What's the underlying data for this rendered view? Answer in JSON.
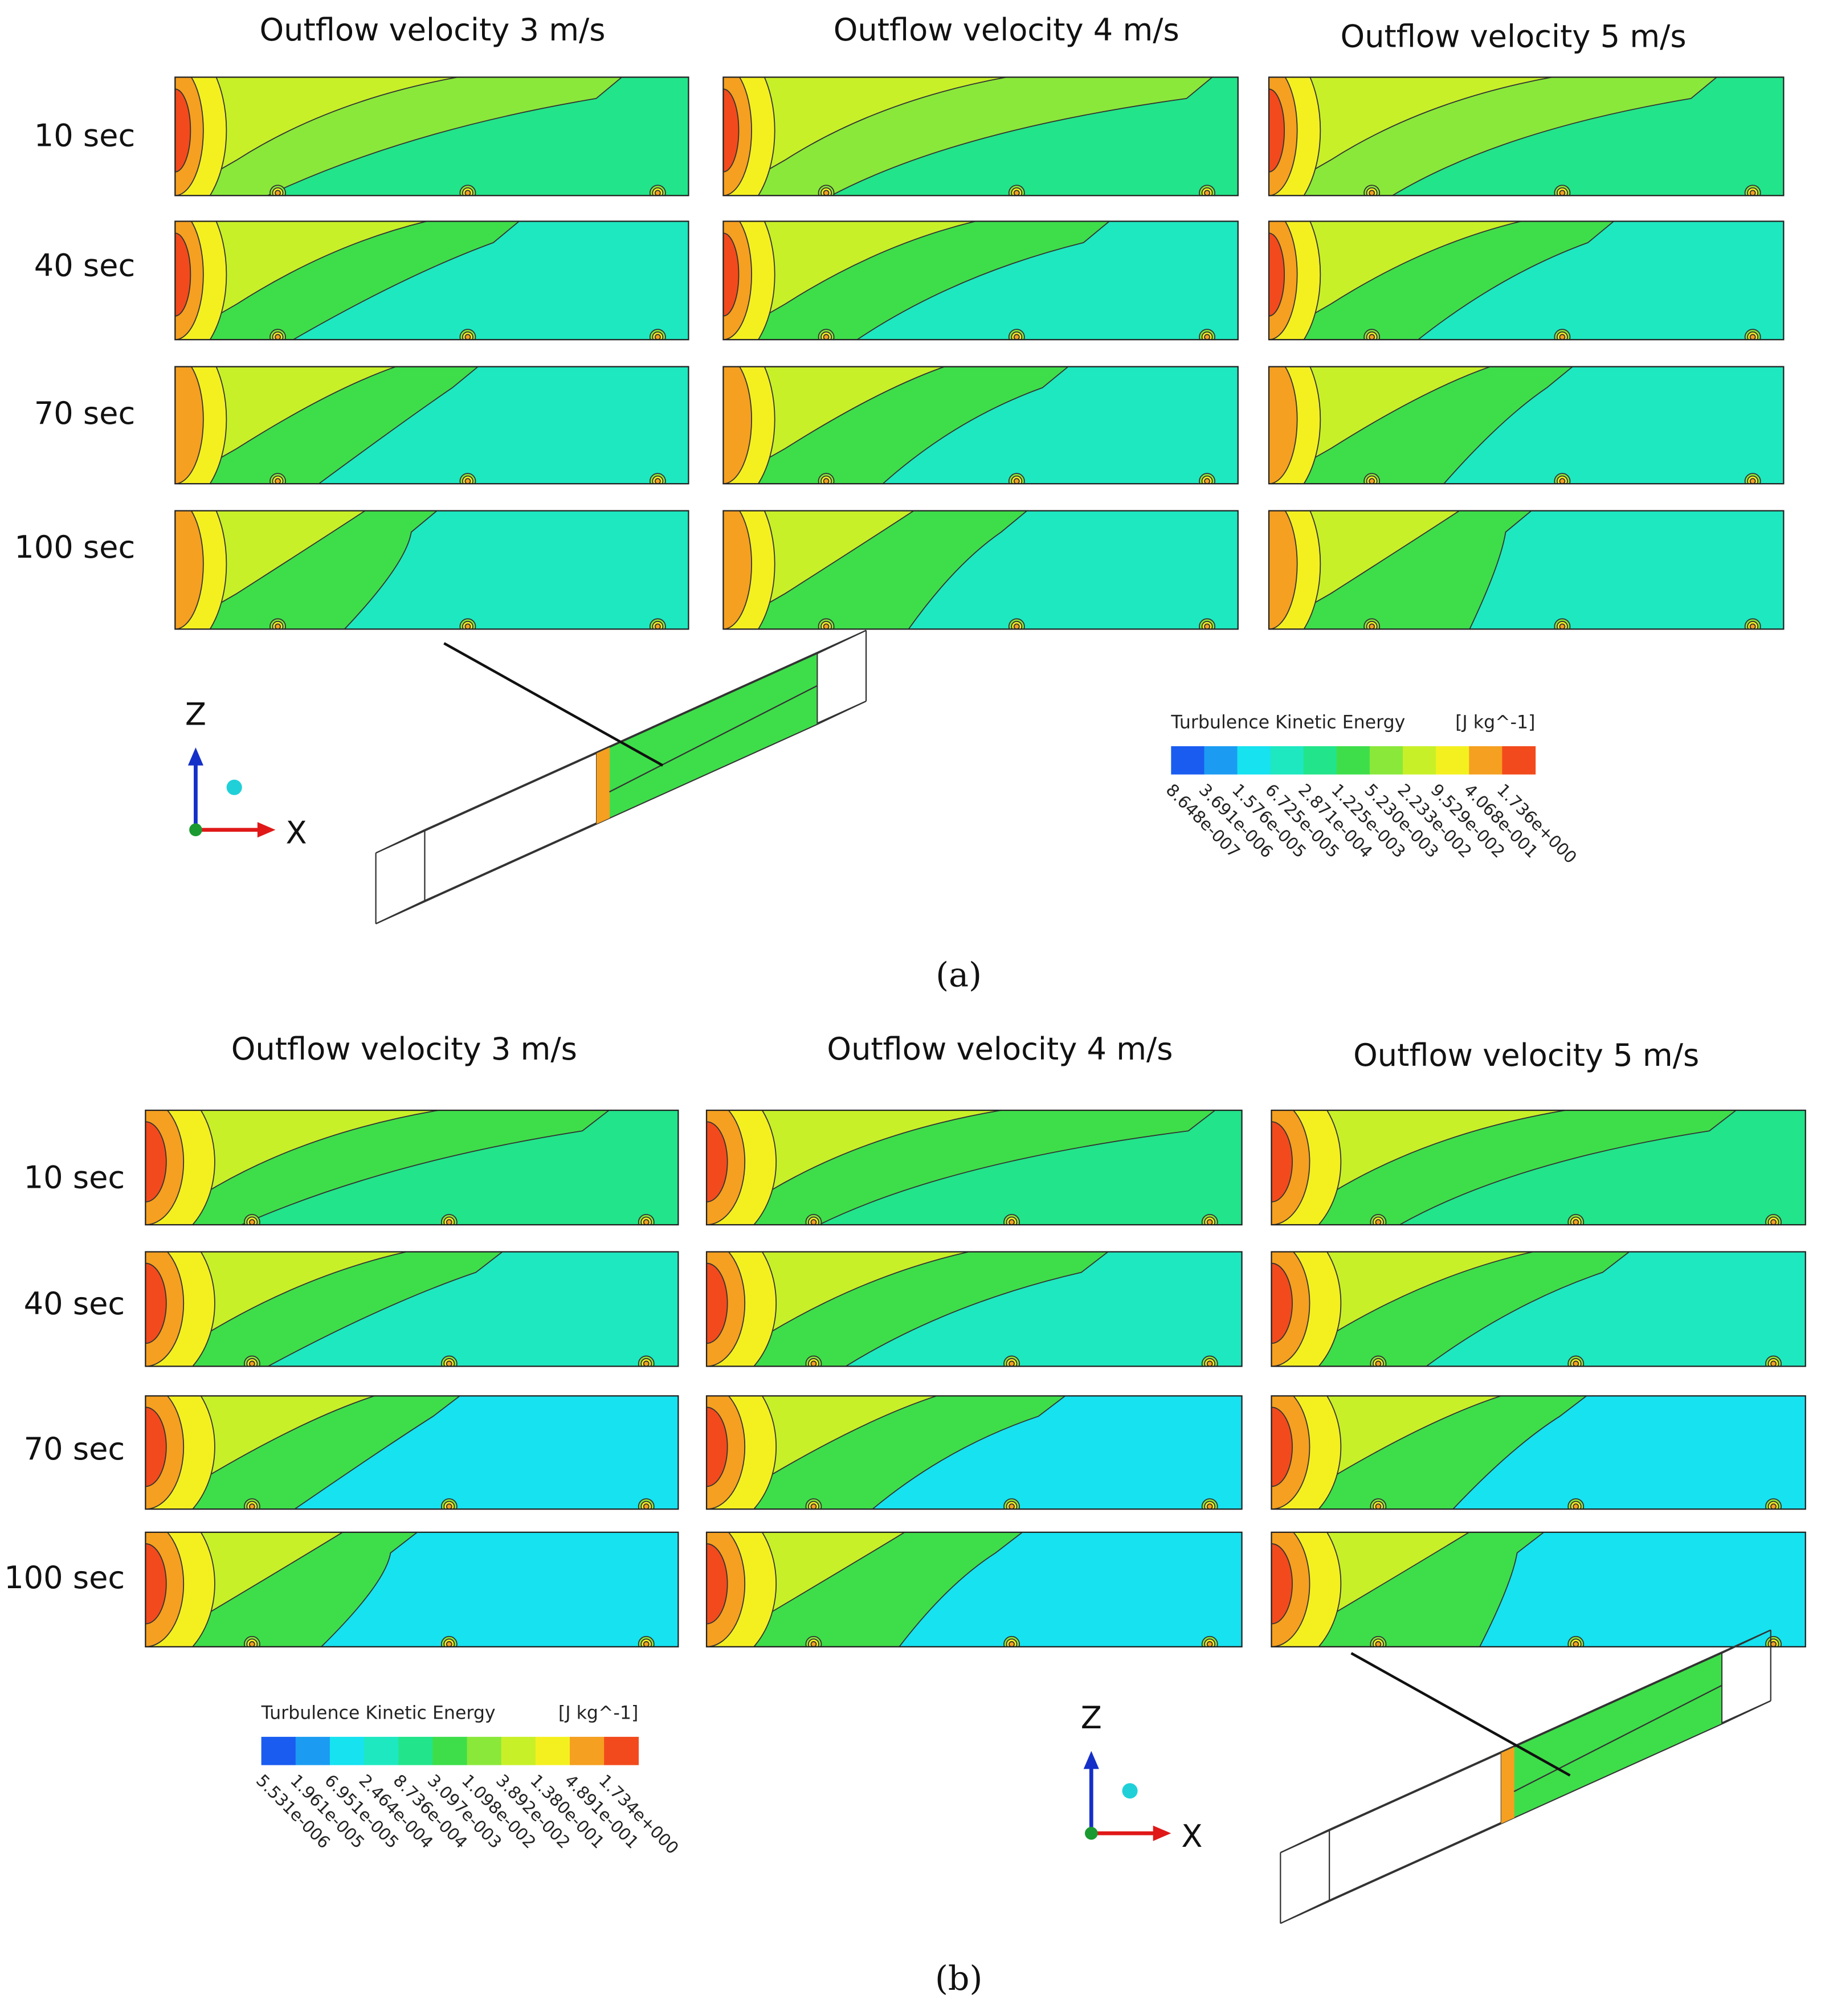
{
  "panels": [
    {
      "label": "(a)",
      "column_titles": [
        "Outflow velocity 3 m/s",
        "Outflow velocity 4 m/s",
        "Outflow velocity 5 m/s"
      ],
      "row_labels": [
        "10 sec",
        "40 sec",
        "70 sec",
        "100 sec"
      ],
      "axes": {
        "z": "Z",
        "x": "X"
      },
      "legend": {
        "title": "Turbulence Kinetic Energy",
        "unit": "[J kg^-1]",
        "colors": [
          "#1a5cf0",
          "#1b9cf2",
          "#16e2f0",
          "#1ee8c0",
          "#22e48a",
          "#3ede4a",
          "#8ae83a",
          "#c8f028",
          "#f4f020",
          "#f5a020",
          "#f24a1c"
        ],
        "ticks": [
          "8.648e-007",
          "3.691e-006",
          "1.576e-005",
          "6.725e-005",
          "2.871e-004",
          "1.225e-003",
          "5.230e-003",
          "2.233e-002",
          "9.529e-002",
          "4.068e-001",
          "1.736e+000"
        ]
      }
    },
    {
      "label": "(b)",
      "column_titles": [
        "Outflow velocity 3 m/s",
        "Outflow velocity 4 m/s",
        "Outflow velocity 5 m/s"
      ],
      "row_labels": [
        "10 sec",
        "40 sec",
        "70 sec",
        "100 sec"
      ],
      "axes": {
        "z": "Z",
        "x": "X"
      },
      "legend": {
        "title": "Turbulence Kinetic Energy",
        "unit": "[J kg^-1]",
        "colors": [
          "#1a5cf0",
          "#1b9cf2",
          "#16e2f0",
          "#1ee8c0",
          "#22e48a",
          "#3ede4a",
          "#8ae83a",
          "#c8f028",
          "#f4f020",
          "#f5a020",
          "#f24a1c"
        ],
        "ticks": [
          "5.531e-006",
          "1.961e-005",
          "6.951e-005",
          "2.464e-004",
          "8.736e-004",
          "3.097e-003",
          "1.098e-002",
          "3.892e-002",
          "1.380e-001",
          "4.891e-001",
          "1.734e+000"
        ]
      }
    }
  ]
}
